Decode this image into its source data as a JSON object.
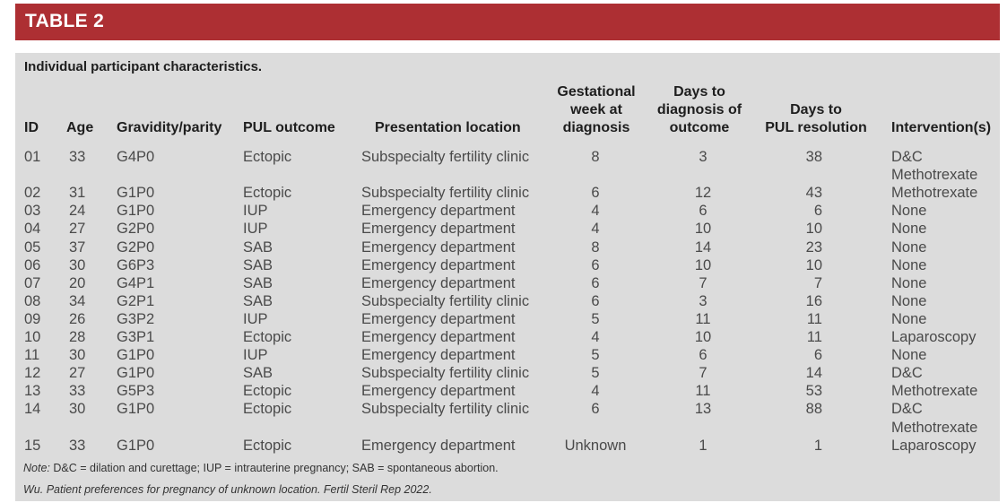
{
  "table_label": "TABLE 2",
  "caption": "Individual participant characteristics.",
  "headers": {
    "id": "ID",
    "age": "Age",
    "gravidity": "Gravidity/parity",
    "outcome": "PUL outcome",
    "location": "Presentation location",
    "gest": [
      "Gestational",
      "week at",
      "diagnosis"
    ],
    "days_dx": [
      "Days to",
      "diagnosis of",
      "outcome"
    ],
    "days_res": [
      "Days to",
      "PUL resolution"
    ],
    "intervention": "Intervention(s)"
  },
  "rows": [
    {
      "id": "01",
      "age": "33",
      "gp": "G4P0",
      "outcome": "Ectopic",
      "location": "Subspecialty fertility clinic",
      "gest": "8",
      "days_dx": "3",
      "days_res": "38",
      "intervention": [
        "D&C",
        "Methotrexate"
      ]
    },
    {
      "id": "02",
      "age": "31",
      "gp": "G1P0",
      "outcome": "Ectopic",
      "location": "Subspecialty fertility clinic",
      "gest": "6",
      "days_dx": "12",
      "days_res": "43",
      "intervention": [
        "Methotrexate"
      ]
    },
    {
      "id": "03",
      "age": "24",
      "gp": "G1P0",
      "outcome": "IUP",
      "location": "Emergency department",
      "gest": "4",
      "days_dx": "6",
      "days_res": "6",
      "intervention": [
        "None"
      ]
    },
    {
      "id": "04",
      "age": "27",
      "gp": "G2P0",
      "outcome": "IUP",
      "location": "Emergency department",
      "gest": "4",
      "days_dx": "10",
      "days_res": "10",
      "intervention": [
        "None"
      ]
    },
    {
      "id": "05",
      "age": "37",
      "gp": "G2P0",
      "outcome": "SAB",
      "location": "Emergency department",
      "gest": "8",
      "days_dx": "14",
      "days_res": "23",
      "intervention": [
        "None"
      ]
    },
    {
      "id": "06",
      "age": "30",
      "gp": "G6P3",
      "outcome": "SAB",
      "location": "Emergency department",
      "gest": "6",
      "days_dx": "10",
      "days_res": "10",
      "intervention": [
        "None"
      ]
    },
    {
      "id": "07",
      "age": "20",
      "gp": "G4P1",
      "outcome": "SAB",
      "location": "Emergency department",
      "gest": "6",
      "days_dx": "7",
      "days_res": "7",
      "intervention": [
        "None"
      ]
    },
    {
      "id": "08",
      "age": "34",
      "gp": "G2P1",
      "outcome": "SAB",
      "location": "Subspecialty fertility clinic",
      "gest": "6",
      "days_dx": "3",
      "days_res": "16",
      "intervention": [
        "None"
      ]
    },
    {
      "id": "09",
      "age": "26",
      "gp": "G3P2",
      "outcome": "IUP",
      "location": "Emergency department",
      "gest": "5",
      "days_dx": "11",
      "days_res": "11",
      "intervention": [
        "None"
      ]
    },
    {
      "id": "10",
      "age": "28",
      "gp": "G3P1",
      "outcome": "Ectopic",
      "location": "Emergency department",
      "gest": "4",
      "days_dx": "10",
      "days_res": "11",
      "intervention": [
        "Laparoscopy"
      ]
    },
    {
      "id": "11",
      "age": "30",
      "gp": "G1P0",
      "outcome": "IUP",
      "location": "Emergency department",
      "gest": "5",
      "days_dx": "6",
      "days_res": "6",
      "intervention": [
        "None"
      ]
    },
    {
      "id": "12",
      "age": "27",
      "gp": "G1P0",
      "outcome": "SAB",
      "location": "Subspecialty fertility clinic",
      "gest": "5",
      "days_dx": "7",
      "days_res": "14",
      "intervention": [
        "D&C"
      ]
    },
    {
      "id": "13",
      "age": "33",
      "gp": "G5P3",
      "outcome": "Ectopic",
      "location": "Emergency department",
      "gest": "4",
      "days_dx": "11",
      "days_res": "53",
      "intervention": [
        "Methotrexate"
      ]
    },
    {
      "id": "14",
      "age": "30",
      "gp": "G1P0",
      "outcome": "Ectopic",
      "location": "Subspecialty fertility clinic",
      "gest": "6",
      "days_dx": "13",
      "days_res": "88",
      "intervention": [
        "D&C",
        "Methotrexate"
      ]
    },
    {
      "id": "15",
      "age": "33",
      "gp": "G1P0",
      "outcome": "Ectopic",
      "location": "Emergency department",
      "gest": "Unknown",
      "days_dx": "1",
      "days_res": "1",
      "intervention": [
        "Laparoscopy"
      ]
    }
  ],
  "note": {
    "label": "Note:",
    "text": " D&C = dilation and curettage; IUP = intrauterine pregnancy; SAB = spontaneous abortion."
  },
  "citation": "Wu. Patient preferences for pregnancy of unknown location. Fertil Steril Rep 2022.",
  "colors": {
    "header_bar": "#ad2f33",
    "panel": "#dcdcdc"
  }
}
